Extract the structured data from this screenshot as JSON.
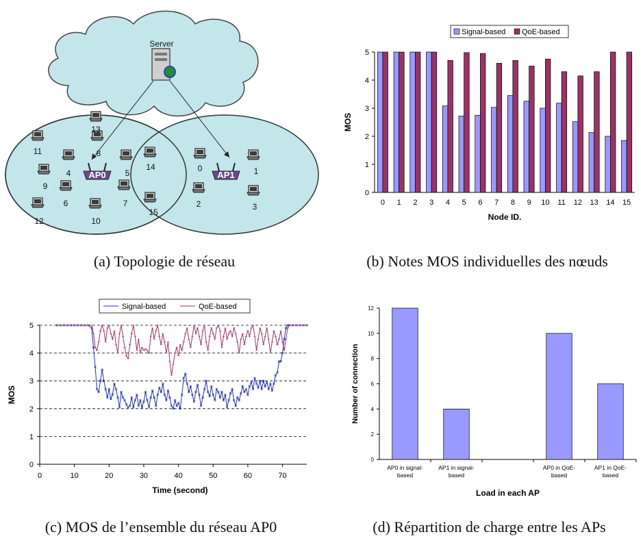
{
  "captions": {
    "a": "(a) Topologie de réseau",
    "b": "(b) Notes MOS individuelles des nœuds",
    "c": "(c) MOS de l’ensemble du réseau AP0",
    "d": "(d) Répartition de charge entre les APs"
  },
  "topology": {
    "server_label": "Server",
    "ap0_label": "AP0",
    "ap1_label": "AP1",
    "node_labels": [
      "0",
      "1",
      "2",
      "3",
      "4",
      "5",
      "6",
      "7",
      "8",
      "9",
      "10",
      "11",
      "12",
      "13",
      "14",
      "15"
    ],
    "colors": {
      "cloud": "#c3e6eb",
      "cell": "#c3e6eb"
    }
  },
  "chart_data": [
    {
      "type": "bar",
      "xlabel": "Node ID.",
      "ylabel": "MOS",
      "categories": [
        "0",
        "1",
        "2",
        "3",
        "4",
        "5",
        "6",
        "7",
        "8",
        "9",
        "10",
        "11",
        "12",
        "13",
        "14",
        "15"
      ],
      "ylim": [
        0,
        5
      ],
      "yticks": [
        "0",
        "1",
        "2",
        "3",
        "4",
        "5"
      ],
      "grid": false,
      "legend_position": "top",
      "series": [
        {
          "name": "Signal-based",
          "color": "#9999ff",
          "values": [
            5,
            5,
            5,
            5,
            3.08,
            2.72,
            2.75,
            3.03,
            3.45,
            3.25,
            3.0,
            3.18,
            2.52,
            2.13,
            2.0,
            1.85
          ]
        },
        {
          "name": "QoE-based",
          "color": "#993366",
          "values": [
            5,
            5,
            5,
            5,
            4.7,
            4.98,
            4.95,
            4.6,
            4.7,
            4.5,
            4.75,
            4.3,
            4.15,
            4.3,
            5,
            5
          ]
        }
      ]
    },
    {
      "type": "line",
      "xlabel": "Time (second)",
      "ylabel": "MOS",
      "xlim": [
        0,
        77
      ],
      "ylim": [
        0,
        5
      ],
      "xticks": [
        "0",
        "10",
        "20",
        "30",
        "40",
        "50",
        "60",
        "70"
      ],
      "yticks": [
        "0",
        "1",
        "2",
        "3",
        "4",
        "5"
      ],
      "grid": "horizontal dashed",
      "legend_position": "top",
      "series": [
        {
          "name": "Signal-based",
          "color": "#2233aa",
          "x": [
            5,
            6,
            7,
            8,
            9,
            10,
            11,
            12,
            13,
            14,
            15,
            15.5,
            16,
            16.5,
            17,
            17.5,
            18,
            18.5,
            19,
            19.5,
            20,
            20.5,
            21,
            21.5,
            22,
            22.5,
            23,
            23.5,
            24,
            24.5,
            25,
            25.5,
            26,
            26.5,
            27,
            27.5,
            28,
            28.5,
            29,
            29.5,
            30,
            30.5,
            31,
            31.5,
            32,
            32.5,
            33,
            33.5,
            34,
            34.5,
            35,
            35.5,
            36,
            36.5,
            37,
            37.5,
            38,
            38.5,
            39,
            39.5,
            40,
            40.5,
            41,
            41.5,
            42,
            42.5,
            43,
            43.5,
            44,
            44.5,
            45,
            45.5,
            46,
            46.5,
            47,
            47.5,
            48,
            48.5,
            49,
            49.5,
            50,
            50.5,
            51,
            51.5,
            52,
            52.5,
            53,
            53.5,
            54,
            54.5,
            55,
            55.5,
            56,
            56.5,
            57,
            57.5,
            58,
            58.5,
            59,
            59.5,
            60,
            60.5,
            61,
            61.5,
            62,
            62.5,
            63,
            63.5,
            64,
            64.5,
            65,
            65.5,
            66,
            66.5,
            67,
            67.5,
            68,
            68.5,
            69,
            69.5,
            70,
            70.5,
            71,
            71.5,
            72,
            73,
            74,
            75,
            76,
            77
          ],
          "y": [
            5,
            5,
            5,
            5,
            5,
            5,
            5,
            5,
            5,
            5,
            4.9,
            4.2,
            3.5,
            2.7,
            2.6,
            3.0,
            3.4,
            3.0,
            2.7,
            2.4,
            2.7,
            2.35,
            2.5,
            2.9,
            2.7,
            2.4,
            2.05,
            2.6,
            2.4,
            2.3,
            2.15,
            2.05,
            2.1,
            2.4,
            2.05,
            2.3,
            2.5,
            2.1,
            2.3,
            2.05,
            2.25,
            2.6,
            2.3,
            2.05,
            2.4,
            2.65,
            2.4,
            2.1,
            2.5,
            2.75,
            2.6,
            2.9,
            2.5,
            2.3,
            2.65,
            2.4,
            2.1,
            2.0,
            2.3,
            2.1,
            2.2,
            2.0,
            2.5,
            3.1,
            3.25,
            2.9,
            2.6,
            2.8,
            2.5,
            2.25,
            2.6,
            2.85,
            2.5,
            2.1,
            2.4,
            2.7,
            3.0,
            2.6,
            2.45,
            2.8,
            2.5,
            2.3,
            2.7,
            2.6,
            2.4,
            2.6,
            2.3,
            2.5,
            2.05,
            2.3,
            2.55,
            2.7,
            2.3,
            2.1,
            2.4,
            2.3,
            2.55,
            2.8,
            2.6,
            2.7,
            2.5,
            2.8,
            2.95,
            2.7,
            3.1,
            2.9,
            2.75,
            3.0,
            2.7,
            3.0,
            2.8,
            2.95,
            2.7,
            2.9,
            2.65,
            2.9,
            3.2,
            3.3,
            3.7,
            3.7,
            4.0,
            4.5,
            4.9,
            5,
            5,
            5,
            5,
            5,
            5,
            5
          ]
        },
        {
          "name": "QoE-based",
          "color": "#993366",
          "x": [
            5,
            6,
            7,
            8,
            9,
            10,
            11,
            12,
            13,
            14,
            15,
            15.5,
            16,
            16.5,
            17,
            17.5,
            18,
            18.5,
            19,
            19.5,
            20,
            20.5,
            21,
            21.5,
            22,
            22.5,
            23,
            23.5,
            24,
            24.5,
            25,
            25.5,
            26,
            26.5,
            27,
            27.5,
            28,
            28.5,
            29,
            29.5,
            30,
            30.5,
            31,
            31.5,
            32,
            32.5,
            33,
            33.5,
            34,
            34.5,
            35,
            35.5,
            36,
            36.5,
            37,
            37.5,
            38,
            38.5,
            39,
            39.5,
            40,
            40.5,
            41,
            41.5,
            42,
            42.5,
            43,
            43.5,
            44,
            44.5,
            45,
            45.5,
            46,
            46.5,
            47,
            47.5,
            48,
            48.5,
            49,
            49.5,
            50,
            50.5,
            51,
            51.5,
            52,
            52.5,
            53,
            53.5,
            54,
            54.5,
            55,
            55.5,
            56,
            56.5,
            57,
            57.5,
            58,
            58.5,
            59,
            59.5,
            60,
            60.5,
            61,
            61.5,
            62,
            62.5,
            63,
            63.5,
            64,
            64.5,
            65,
            65.5,
            66,
            66.5,
            67,
            67.5,
            68,
            68.5,
            69,
            69.5,
            70,
            70.5,
            71,
            71.5,
            72,
            73,
            74,
            75,
            76,
            77
          ],
          "y": [
            5,
            5,
            5,
            5,
            5,
            5,
            5,
            5,
            5,
            5,
            5,
            4.7,
            4.2,
            4.1,
            4.4,
            4.8,
            5.0,
            4.8,
            4.4,
            4.9,
            5.0,
            4.7,
            4.5,
            4.8,
            4.3,
            4.0,
            4.7,
            5.0,
            4.6,
            4.2,
            3.9,
            3.8,
            4.3,
            4.7,
            5.0,
            4.6,
            4.1,
            4.5,
            4.0,
            4.2,
            4.1,
            4.15,
            4.1,
            4.0,
            4.6,
            4.9,
            4.5,
            4.8,
            5.0,
            4.6,
            4.3,
            4.7,
            4.4,
            4.0,
            4.4,
            3.7,
            3.2,
            3.6,
            4.0,
            4.2,
            3.9,
            4.3,
            4.1,
            4.4,
            4.7,
            4.9,
            4.5,
            4.2,
            4.6,
            5.0,
            4.7,
            4.9,
            4.6,
            4.3,
            4.8,
            5.0,
            4.4,
            4.1,
            4.6,
            4.9,
            4.7,
            4.5,
            4.9,
            5.0,
            4.8,
            4.2,
            4.6,
            4.9,
            4.5,
            4.7,
            4.8,
            4.6,
            4.9,
            4.7,
            4.4,
            4.0,
            4.5,
            4.7,
            4.3,
            4.6,
            4.8,
            4.6,
            4.9,
            5.0,
            4.6,
            4.1,
            4.5,
            4.9,
            4.7,
            4.3,
            4.6,
            4.9,
            4.5,
            4.0,
            4.4,
            4.8,
            4.6,
            4.3,
            4.5,
            4.8,
            4.4,
            4.1,
            4.5,
            4.9,
            5.0,
            5,
            5,
            5,
            5,
            5
          ]
        }
      ]
    },
    {
      "type": "bar",
      "xlabel": "Load in each AP",
      "ylabel": "Number of connection",
      "categories": [
        "AP0 in signal-based",
        "AP1 in signal-based",
        "",
        "AP0 in QoE-based",
        "AP1 in QoE-based"
      ],
      "values": [
        12,
        4,
        0,
        10,
        6
      ],
      "ylim": [
        0,
        12
      ],
      "yticks": [
        "0",
        "2",
        "4",
        "6",
        "8",
        "10",
        "12"
      ],
      "color": "#9999ff",
      "grid": false
    }
  ]
}
